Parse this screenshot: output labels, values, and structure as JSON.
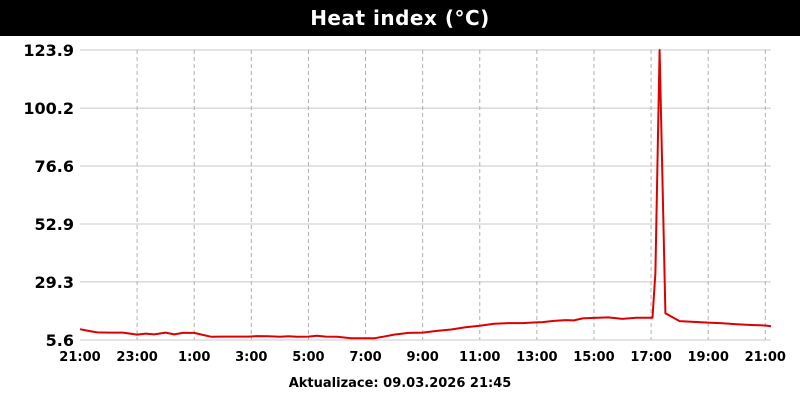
{
  "chart_data": {
    "type": "line",
    "title": "Heat index (°C)",
    "xlabel": "",
    "ylabel": "",
    "ylim": [
      5.6,
      123.9
    ],
    "grid": true,
    "y_ticks": [
      "123.9",
      "100.2",
      "76.6",
      "52.9",
      "29.3",
      "5.6"
    ],
    "y_tick_values": [
      123.9,
      100.2,
      76.6,
      52.9,
      29.3,
      5.6
    ],
    "x_ticks": [
      "21:00",
      "23:00",
      "1:00",
      "3:00",
      "5:00",
      "7:00",
      "9:00",
      "11:00",
      "13:00",
      "15:00",
      "17:00",
      "19:00",
      "21:00"
    ],
    "x_tick_hours": [
      0,
      2,
      4,
      6,
      8,
      10,
      12,
      14,
      16,
      18,
      20,
      22,
      24
    ],
    "xlim_hours": [
      0,
      24.2
    ],
    "series": [
      {
        "color": "#dd0000",
        "x_hours": [
          0.0,
          0.3,
          0.6,
          1.0,
          1.5,
          2.0,
          2.3,
          2.6,
          3.0,
          3.3,
          3.6,
          4.0,
          4.3,
          4.6,
          5.0,
          5.3,
          5.6,
          5.9,
          6.2,
          6.6,
          7.0,
          7.3,
          7.6,
          8.0,
          8.3,
          8.6,
          9.0,
          9.5,
          10.0,
          10.3,
          10.6,
          11.0,
          11.5,
          12.0,
          12.5,
          13.0,
          13.5,
          14.0,
          14.5,
          15.0,
          15.5,
          15.8,
          16.2,
          16.6,
          17.0,
          17.3,
          17.6,
          18.0,
          18.5,
          19.0,
          19.5,
          20.0,
          20.05,
          20.15,
          20.3,
          20.5,
          21.0,
          21.5,
          22.0,
          22.5,
          23.0,
          23.5,
          24.0,
          24.2
        ],
        "values": [
          10.0,
          9.3,
          8.7,
          8.6,
          8.6,
          7.8,
          8.2,
          7.9,
          8.6,
          7.9,
          8.5,
          8.5,
          7.7,
          6.9,
          7.0,
          7.0,
          7.0,
          7.0,
          7.2,
          7.1,
          6.9,
          7.1,
          6.9,
          7.0,
          7.3,
          7.0,
          6.9,
          6.3,
          6.3,
          6.3,
          6.9,
          7.8,
          8.5,
          8.6,
          9.3,
          9.9,
          10.8,
          11.4,
          12.2,
          12.5,
          12.5,
          12.7,
          12.9,
          13.4,
          13.7,
          13.6,
          14.4,
          14.6,
          14.8,
          14.2,
          14.7,
          14.7,
          14.7,
          33.0,
          123.9,
          16.5,
          13.3,
          13.0,
          12.7,
          12.4,
          12.0,
          11.7,
          11.5,
          11.2
        ]
      }
    ]
  },
  "footer": {
    "label": "Aktualizace: 09.03.2026 21:45"
  }
}
